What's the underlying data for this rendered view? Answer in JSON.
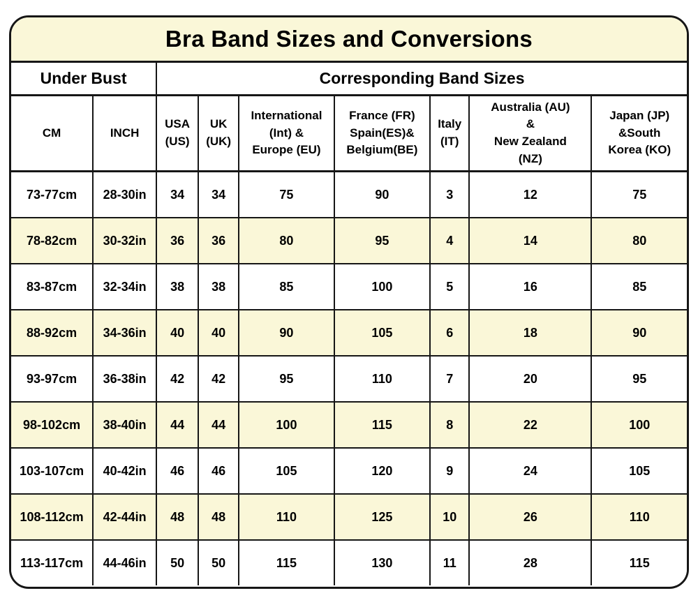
{
  "page_title": "Bra Band Sizes and Conversions",
  "colors": {
    "cream_band": "#FAF7D8",
    "row_white": "#FFFFFF",
    "border": "#161616",
    "text": "#000000"
  },
  "chart_data": {
    "type": "table",
    "title": "Bra Band Sizes and Conversions",
    "group_headers": {
      "under_bust": "Under Bust",
      "band_sizes": "Corresponding Band Sizes"
    },
    "columns": [
      "CM",
      "INCH",
      "USA\n(US)",
      "UK\n(UK)",
      "International\n(Int) &\nEurope (EU)",
      "France (FR)\nSpain(ES)&\nBelgium(BE)",
      "Italy\n(IT)",
      "Australia (AU)\n&\nNew Zealand\n(NZ)",
      "Japan (JP)\n&South\nKorea (KO)"
    ],
    "column_widths_percent": [
      12.1,
      9.4,
      6.2,
      6.0,
      14.1,
      14.2,
      5.8,
      18.1,
      14.1
    ],
    "rows": [
      [
        "73-77cm",
        "28-30in",
        "34",
        "34",
        "75",
        "90",
        "3",
        "12",
        "75"
      ],
      [
        "78-82cm",
        "30-32in",
        "36",
        "36",
        "80",
        "95",
        "4",
        "14",
        "80"
      ],
      [
        "83-87cm",
        "32-34in",
        "38",
        "38",
        "85",
        "100",
        "5",
        "16",
        "85"
      ],
      [
        "88-92cm",
        "34-36in",
        "40",
        "40",
        "90",
        "105",
        "6",
        "18",
        "90"
      ],
      [
        "93-97cm",
        "36-38in",
        "42",
        "42",
        "95",
        "110",
        "7",
        "20",
        "95"
      ],
      [
        "98-102cm",
        "38-40in",
        "44",
        "44",
        "100",
        "115",
        "8",
        "22",
        "100"
      ],
      [
        "103-107cm",
        "40-42in",
        "46",
        "46",
        "105",
        "120",
        "9",
        "24",
        "105"
      ],
      [
        "108-112cm",
        "42-44in",
        "48",
        "48",
        "110",
        "125",
        "10",
        "26",
        "110"
      ],
      [
        "113-117cm",
        "44-46in",
        "50",
        "50",
        "115",
        "130",
        "11",
        "28",
        "115"
      ]
    ],
    "row_striping": [
      "white",
      "cream"
    ],
    "legend_position": "none",
    "grid": true
  }
}
